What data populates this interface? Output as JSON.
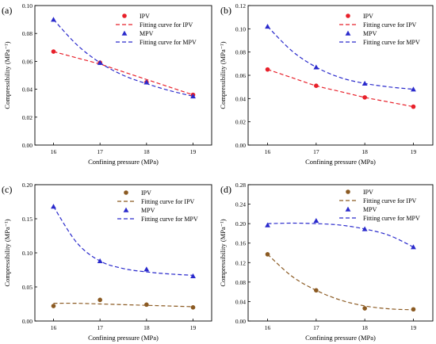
{
  "chart_data": [
    {
      "type": "scatter",
      "panel_label": "(a)",
      "xlabel": "Confining pressure (MPa)",
      "ylabel": "Compressibility (MPa⁻¹)",
      "xlim": [
        15.6,
        19.4
      ],
      "ylim": [
        0,
        0.1
      ],
      "xticks": [
        16,
        17,
        18,
        19
      ],
      "yticks": [
        0.0,
        0.02,
        0.04,
        0.06,
        0.08,
        0.1
      ],
      "ytick_labels": [
        "0.00",
        "0.02",
        "0.04",
        "0.06",
        "0.08",
        "0.10"
      ],
      "legend_position": "top-right",
      "series": [
        {
          "name": "IPV",
          "marker": "circle",
          "color": "#e8202a",
          "x": [
            16,
            17,
            18,
            19
          ],
          "y": [
            0.067,
            0.059,
            0.045,
            0.036
          ]
        },
        {
          "name": "MPV",
          "marker": "triangle",
          "color": "#2a2acc",
          "x": [
            16,
            17,
            18,
            19
          ],
          "y": [
            0.09,
            0.059,
            0.045,
            0.035
          ]
        }
      ],
      "fits": [
        {
          "name": "Fitting curve for IPV",
          "color": "#e8202a",
          "x": [
            16,
            16.5,
            17,
            17.5,
            18,
            18.5,
            19
          ],
          "y": [
            0.067,
            0.0625,
            0.058,
            0.0525,
            0.047,
            0.0415,
            0.036
          ]
        },
        {
          "name": "Fitting curve for MPV",
          "color": "#2a2acc",
          "x": [
            16,
            16.5,
            17,
            17.5,
            18,
            18.5,
            19
          ],
          "y": [
            0.09,
            0.072,
            0.059,
            0.05,
            0.044,
            0.039,
            0.035
          ]
        }
      ]
    },
    {
      "type": "scatter",
      "panel_label": "(b)",
      "xlabel": "Confining pressure (MPa)",
      "ylabel": "Compressibility (MPa⁻¹)",
      "xlim": [
        15.6,
        19.4
      ],
      "ylim": [
        0,
        0.12
      ],
      "xticks": [
        16,
        17,
        18,
        19
      ],
      "yticks": [
        0.0,
        0.02,
        0.04,
        0.06,
        0.08,
        0.1,
        0.12
      ],
      "ytick_labels": [
        "0.00",
        "0.02",
        "0.04",
        "0.06",
        "0.08",
        "0.10",
        "0.12"
      ],
      "legend_position": "top-right",
      "series": [
        {
          "name": "IPV",
          "marker": "circle",
          "color": "#e8202a",
          "x": [
            16,
            17,
            18,
            19
          ],
          "y": [
            0.065,
            0.051,
            0.041,
            0.033
          ]
        },
        {
          "name": "MPV",
          "marker": "triangle",
          "color": "#2a2acc",
          "x": [
            16,
            17,
            18,
            19
          ],
          "y": [
            0.102,
            0.067,
            0.053,
            0.048
          ]
        }
      ],
      "fits": [
        {
          "name": "Fitting curve for IPV",
          "color": "#e8202a",
          "x": [
            16,
            16.5,
            17,
            17.5,
            18,
            18.5,
            19
          ],
          "y": [
            0.065,
            0.058,
            0.051,
            0.046,
            0.041,
            0.037,
            0.033
          ]
        },
        {
          "name": "Fitting curve for MPV",
          "color": "#2a2acc",
          "x": [
            16,
            16.5,
            17,
            17.5,
            18,
            18.5,
            19
          ],
          "y": [
            0.102,
            0.081,
            0.067,
            0.058,
            0.053,
            0.05,
            0.048
          ]
        }
      ]
    },
    {
      "type": "scatter",
      "panel_label": "(c)",
      "xlabel": "Confining pressure (MPa)",
      "ylabel": "Compressibility (MPa⁻¹)",
      "xlim": [
        15.6,
        19.4
      ],
      "ylim": [
        0,
        0.2
      ],
      "xticks": [
        16,
        17,
        18,
        19
      ],
      "yticks": [
        0.0,
        0.05,
        0.1,
        0.15,
        0.2
      ],
      "ytick_labels": [
        "0.00",
        "0.05",
        "0.10",
        "0.15",
        "0.20"
      ],
      "legend_position": "top-right",
      "series": [
        {
          "name": "IPV",
          "marker": "circle",
          "color": "#8b5a22",
          "x": [
            16,
            17,
            18,
            19
          ],
          "y": [
            0.022,
            0.031,
            0.024,
            0.02
          ]
        },
        {
          "name": "MPV",
          "marker": "triangle",
          "color": "#2a2acc",
          "x": [
            16,
            17,
            18,
            19
          ],
          "y": [
            0.168,
            0.088,
            0.076,
            0.066
          ]
        }
      ],
      "fits": [
        {
          "name": "Fitting curve for IPV",
          "color": "#8b5a22",
          "x": [
            16,
            16.5,
            17,
            17.5,
            18,
            18.5,
            19
          ],
          "y": [
            0.026,
            0.026,
            0.025,
            0.024,
            0.023,
            0.022,
            0.021
          ]
        },
        {
          "name": "Fitting curve for MPV",
          "color": "#2a2acc",
          "x": [
            16,
            16.5,
            17,
            17.5,
            18,
            18.5,
            19
          ],
          "y": [
            0.168,
            0.115,
            0.088,
            0.077,
            0.072,
            0.069,
            0.067
          ]
        }
      ]
    },
    {
      "type": "scatter",
      "panel_label": "(d)",
      "xlabel": "Confining pressure (MPa)",
      "ylabel": "Compressibility (MPa⁻¹)",
      "xlim": [
        15.6,
        19.4
      ],
      "ylim": [
        0,
        0.28
      ],
      "xticks": [
        16,
        17,
        18,
        19
      ],
      "yticks": [
        0.0,
        0.04,
        0.08,
        0.12,
        0.16,
        0.2,
        0.24,
        0.28
      ],
      "ytick_labels": [
        "0.00",
        "0.04",
        "0.08",
        "0.12",
        "0.16",
        "0.20",
        "0.24",
        "0.28"
      ],
      "legend_position": "top-right",
      "series": [
        {
          "name": "IPV",
          "marker": "circle",
          "color": "#8b5a22",
          "x": [
            16,
            17,
            18,
            19
          ],
          "y": [
            0.137,
            0.063,
            0.026,
            0.024
          ]
        },
        {
          "name": "MPV",
          "marker": "triangle",
          "color": "#2a2acc",
          "x": [
            16,
            17,
            18,
            19
          ],
          "y": [
            0.197,
            0.206,
            0.189,
            0.152
          ]
        }
      ],
      "fits": [
        {
          "name": "Fitting curve for IPV",
          "color": "#8b5a22",
          "x": [
            16,
            16.5,
            17,
            17.5,
            18,
            18.5,
            19
          ],
          "y": [
            0.137,
            0.092,
            0.063,
            0.043,
            0.031,
            0.025,
            0.023
          ]
        },
        {
          "name": "Fitting curve for MPV",
          "color": "#2a2acc",
          "x": [
            16,
            16.5,
            17,
            17.5,
            18,
            18.5,
            19
          ],
          "y": [
            0.2,
            0.201,
            0.2,
            0.197,
            0.189,
            0.176,
            0.152
          ]
        }
      ]
    }
  ]
}
